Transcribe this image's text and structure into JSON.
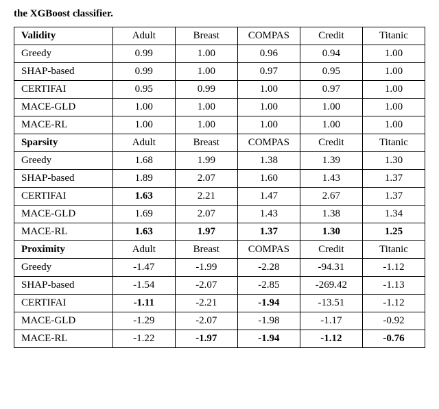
{
  "caption": "the XGBoost classifier.",
  "datasets": [
    "Adult",
    "Breast",
    "COMPAS",
    "Credit",
    "Titanic"
  ],
  "sections": [
    {
      "label": "Validity",
      "rows": [
        {
          "method": "Greedy",
          "vals": [
            "0.99",
            "1.00",
            "0.96",
            "0.94",
            "1.00"
          ],
          "bold": [
            false,
            false,
            false,
            false,
            false
          ]
        },
        {
          "method": "SHAP-based",
          "vals": [
            "0.99",
            "1.00",
            "0.97",
            "0.95",
            "1.00"
          ],
          "bold": [
            false,
            false,
            false,
            false,
            false
          ]
        },
        {
          "method": "CERTIFAI",
          "vals": [
            "0.95",
            "0.99",
            "1.00",
            "0.97",
            "1.00"
          ],
          "bold": [
            false,
            false,
            false,
            false,
            false
          ]
        },
        {
          "method": "MACE-GLD",
          "vals": [
            "1.00",
            "1.00",
            "1.00",
            "1.00",
            "1.00"
          ],
          "bold": [
            false,
            false,
            false,
            false,
            false
          ]
        },
        {
          "method": "MACE-RL",
          "vals": [
            "1.00",
            "1.00",
            "1.00",
            "1.00",
            "1.00"
          ],
          "bold": [
            false,
            false,
            false,
            false,
            false
          ]
        }
      ]
    },
    {
      "label": "Sparsity",
      "rows": [
        {
          "method": "Greedy",
          "vals": [
            "1.68",
            "1.99",
            "1.38",
            "1.39",
            "1.30"
          ],
          "bold": [
            false,
            false,
            false,
            false,
            false
          ]
        },
        {
          "method": "SHAP-based",
          "vals": [
            "1.89",
            "2.07",
            "1.60",
            "1.43",
            "1.37"
          ],
          "bold": [
            false,
            false,
            false,
            false,
            false
          ]
        },
        {
          "method": "CERTIFAI",
          "vals": [
            "1.63",
            "2.21",
            "1.47",
            "2.67",
            "1.37"
          ],
          "bold": [
            true,
            false,
            false,
            false,
            false
          ]
        },
        {
          "method": "MACE-GLD",
          "vals": [
            "1.69",
            "2.07",
            "1.43",
            "1.38",
            "1.34"
          ],
          "bold": [
            false,
            false,
            false,
            false,
            false
          ]
        },
        {
          "method": "MACE-RL",
          "vals": [
            "1.63",
            "1.97",
            "1.37",
            "1.30",
            "1.25"
          ],
          "bold": [
            true,
            true,
            true,
            true,
            true
          ]
        }
      ]
    },
    {
      "label": "Proximity",
      "rows": [
        {
          "method": "Greedy",
          "vals": [
            "-1.47",
            "-1.99",
            "-2.28",
            "-94.31",
            "-1.12"
          ],
          "bold": [
            false,
            false,
            false,
            false,
            false
          ]
        },
        {
          "method": "SHAP-based",
          "vals": [
            "-1.54",
            "-2.07",
            "-2.85",
            "-269.42",
            "-1.13"
          ],
          "bold": [
            false,
            false,
            false,
            false,
            false
          ]
        },
        {
          "method": "CERTIFAI",
          "vals": [
            "-1.11",
            "-2.21",
            "-1.94",
            "-13.51",
            "-1.12"
          ],
          "bold": [
            true,
            false,
            true,
            false,
            false
          ]
        },
        {
          "method": "MACE-GLD",
          "vals": [
            "-1.29",
            "-2.07",
            "-1.98",
            "-1.17",
            "-0.92"
          ],
          "bold": [
            false,
            false,
            false,
            false,
            false
          ]
        },
        {
          "method": "MACE-RL",
          "vals": [
            "-1.22",
            "-1.97",
            "-1.94",
            "-1.12",
            "-0.76"
          ],
          "bold": [
            false,
            true,
            true,
            true,
            true
          ]
        }
      ]
    }
  ]
}
